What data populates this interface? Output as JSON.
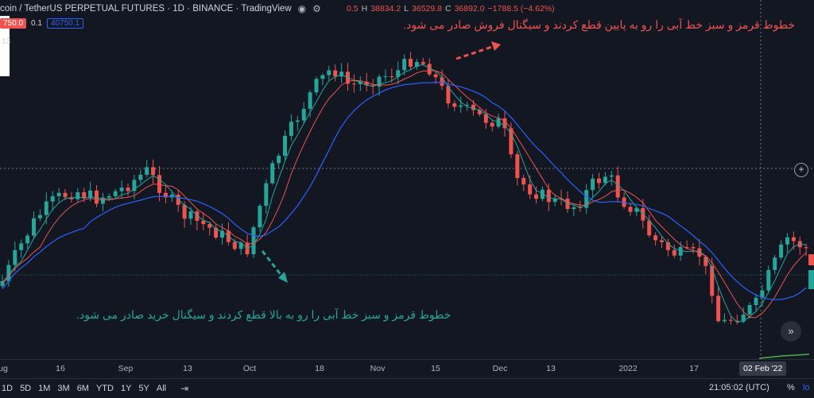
{
  "header": {
    "symbol_text": "coin / TetherUS PERPETUAL FUTURES · 1D · BINANCE · TradingView",
    "ohlc": [
      {
        "k": "",
        "v": "0.5"
      },
      {
        "k": "H",
        "v": "38834.2"
      },
      {
        "k": "L",
        "v": "36529.8"
      },
      {
        "k": "C",
        "v": "36892.0"
      },
      {
        "k": "",
        "v": "−1788.5 (−4.62%)"
      }
    ],
    "price_tag_left": "750.0",
    "price_tag_mid": "0.1",
    "price_tag_right": "40750.1",
    "indicator_label": "13"
  },
  "annotations": {
    "top": "خطوط قرمز و سبز خط آبی را رو به پایین قطع کردند و سیگنال فروش صادر می شود.",
    "bottom": "خطوط قرمز و سبز خط آبی را رو به بالا قطع کردند و سیگنال خرید صادر می شود."
  },
  "time_axis": {
    "ticks": [
      "ug",
      "16",
      "Sep",
      "13",
      "Oct",
      "18",
      "Nov",
      "15",
      "Dec",
      "13",
      "2022",
      "17"
    ],
    "cursor_date": "02 Feb '22"
  },
  "bottom_toolbar": {
    "timeframes": [
      "1D",
      "5D",
      "1M",
      "3M",
      "6M",
      "YTD",
      "1Y",
      "5Y",
      "All"
    ],
    "clock": "21:05:02 (UTC)",
    "percent_label": "%",
    "log_label": "lo"
  },
  "icons": {
    "eye": "eye-icon",
    "gear": "gear-icon",
    "crosshair_add": "plus-circle-icon",
    "scroll_to_end": "double-chevron-right-icon",
    "date_range": "calendar-range-icon"
  },
  "colors": {
    "background": "#131722",
    "up_candle": "#26a69a",
    "down_candle": "#ef5350",
    "ma_fast": "#ef5350",
    "ma_mid": "#26a69a",
    "ma_slow": "#2962ff",
    "annotation_red": "#ef5350",
    "annotation_green": "#26a69a"
  }
}
